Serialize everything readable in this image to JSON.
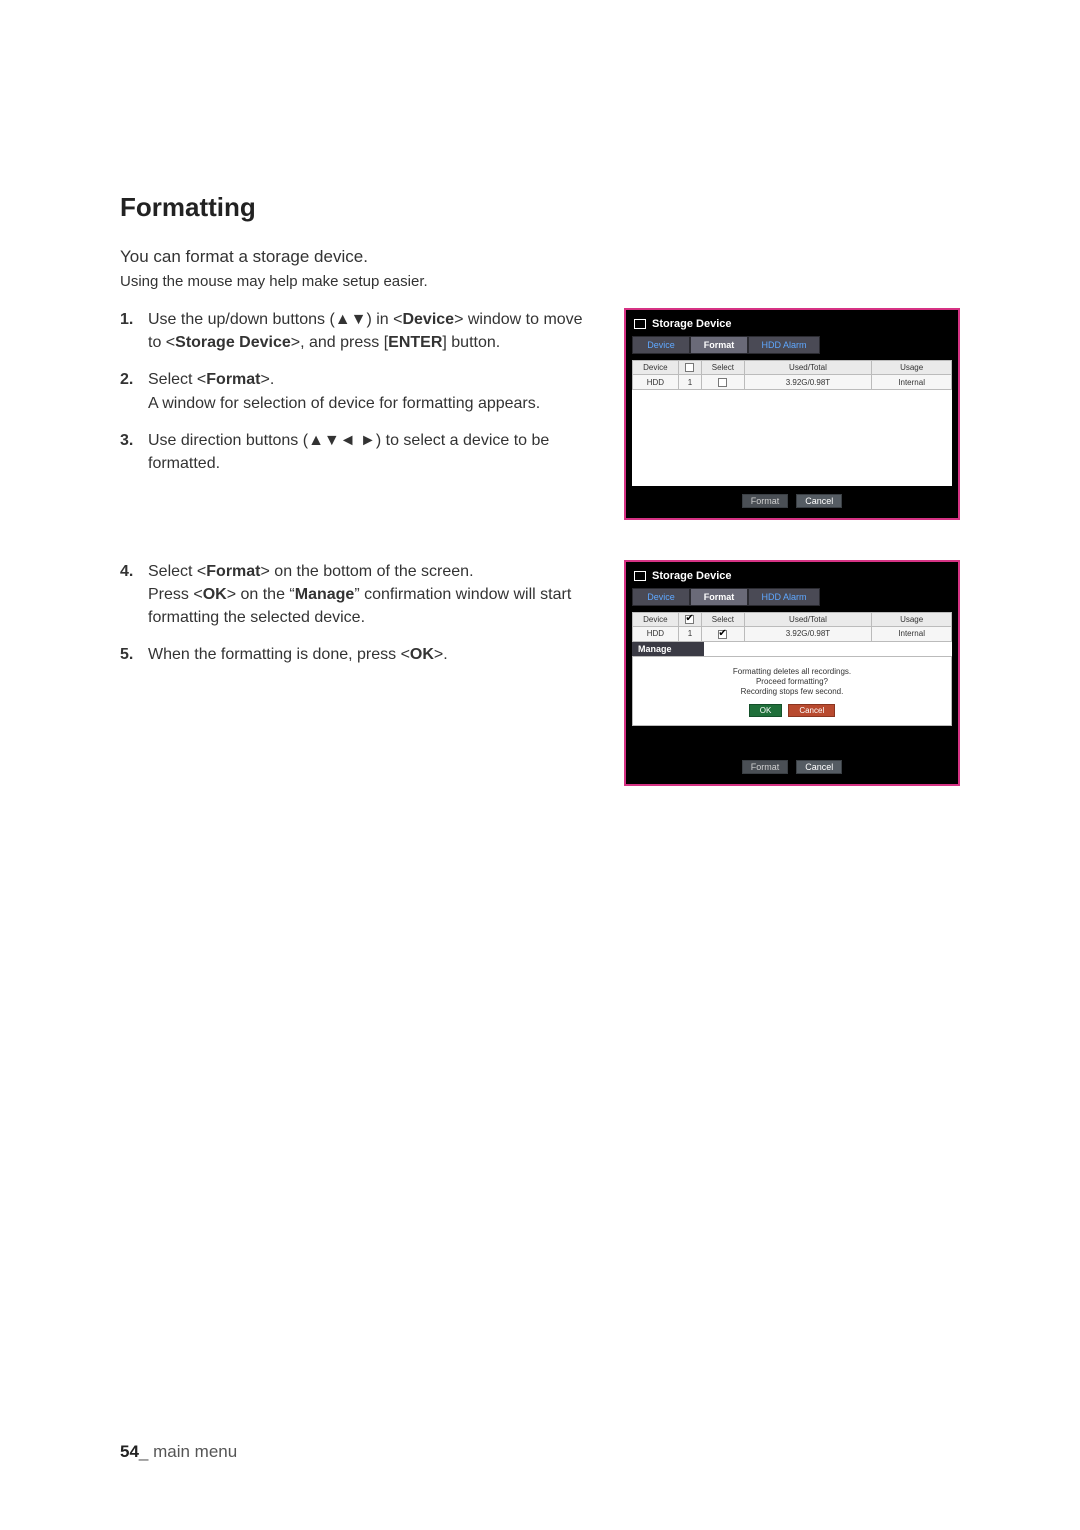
{
  "title": "Formatting",
  "intro": "You can format a storage device.",
  "hint": "Using the mouse may help make setup easier.",
  "steps_a": [
    {
      "n": "1.",
      "html": "Use the up/down buttons (▲▼) in <<b>Device</b>> window to move to <<b>Storage Device</b>>, and press [<b>ENTER</b>] button."
    },
    {
      "n": "2.",
      "html": "Select <<b>Format</b>>.<br>A window for selection of device for formatting appears."
    },
    {
      "n": "3.",
      "html": "Use direction buttons (▲▼◄ ►) to select a device to be formatted."
    }
  ],
  "steps_b": [
    {
      "n": "4.",
      "html": "Select <<b>Format</b>> on the bottom of the screen.<br>Press <<b>OK</b>> on the “<b>Manage</b>” confirmation window will start formatting the selected device."
    },
    {
      "n": "5.",
      "html": "When the formatting is done, press <<b>OK</b>>."
    }
  ],
  "shot": {
    "window_title": "Storage Device",
    "tabs": {
      "device": "Device",
      "format": "Format",
      "alarm": "HDD Alarm"
    },
    "table": {
      "headers": [
        "Device",
        "",
        "Select",
        "Used/Total",
        "Usage"
      ],
      "row": {
        "device": "HDD",
        "num": "1",
        "used_total": "3.92G/0.98T",
        "usage": "Internal"
      }
    },
    "buttons": {
      "format": "Format",
      "cancel": "Cancel"
    },
    "manage": {
      "title": "Manage",
      "line1": "Formatting deletes all recordings.",
      "line2": "Proceed formatting?",
      "line3": "Recording stops few second.",
      "ok": "OK",
      "cancel": "Cancel"
    }
  },
  "footer": {
    "page": "54",
    "label": "main menu"
  }
}
